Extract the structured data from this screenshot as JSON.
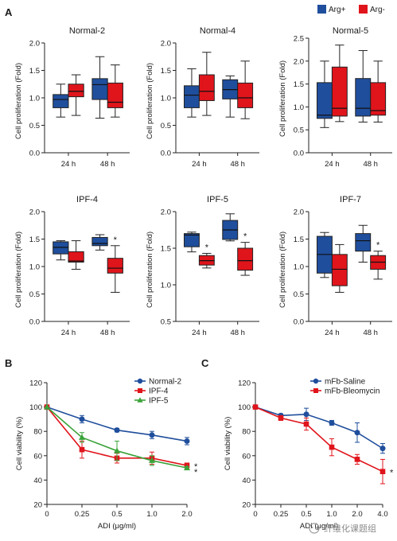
{
  "panels": {
    "A": "A",
    "B": "B",
    "C": "C"
  },
  "colors": {
    "arg_plus": "#1f4e9c",
    "arg_minus": "#e0141b",
    "normal2": "#1f4e9c",
    "ipf4": "#e0141b",
    "ipf5": "#3aa33a",
    "saline": "#1f4e9c",
    "bleomycin": "#e0141b"
  },
  "legend_A": [
    {
      "name": "Arg+",
      "color": "#1f4e9c"
    },
    {
      "name": "Arg-",
      "color": "#e0141b"
    }
  ],
  "watermark": "纤维化课题组",
  "chart_data": [
    {
      "type": "box",
      "title": "Normal-2",
      "ylabel": "Cell proliferation (Fold)",
      "categories": [
        "24 h",
        "48 h"
      ],
      "ylim": [
        0,
        2.0
      ],
      "yticks": [
        "0.0",
        "0.5",
        "1.0",
        "1.5",
        "2.0"
      ],
      "series": [
        {
          "name": "Arg+",
          "boxes": [
            {
              "min": 0.65,
              "q1": 0.82,
              "median": 0.97,
              "q3": 1.06,
              "max": 1.25
            },
            {
              "min": 0.63,
              "q1": 0.97,
              "median": 1.24,
              "q3": 1.35,
              "max": 1.75
            }
          ]
        },
        {
          "name": "Arg-",
          "boxes": [
            {
              "min": 0.68,
              "q1": 1.02,
              "median": 1.12,
              "q3": 1.25,
              "max": 1.42
            },
            {
              "min": 0.65,
              "q1": 0.82,
              "median": 0.92,
              "q3": 1.27,
              "max": 1.6
            }
          ]
        }
      ],
      "stars": [
        "",
        ""
      ]
    },
    {
      "type": "box",
      "title": "Normal-4",
      "ylabel": "Cell proliferation (Fold)",
      "categories": [
        "24 h",
        "48 h"
      ],
      "ylim": [
        0,
        2.0
      ],
      "yticks": [
        "0.0",
        "0.5",
        "1.0",
        "1.5",
        "2.0"
      ],
      "series": [
        {
          "name": "Arg+",
          "boxes": [
            {
              "min": 0.65,
              "q1": 0.82,
              "median": 1.05,
              "q3": 1.22,
              "max": 1.53
            },
            {
              "min": 0.65,
              "q1": 0.98,
              "median": 1.15,
              "q3": 1.33,
              "max": 1.4
            }
          ]
        },
        {
          "name": "Arg-",
          "boxes": [
            {
              "min": 0.68,
              "q1": 0.95,
              "median": 1.12,
              "q3": 1.42,
              "max": 1.83
            },
            {
              "min": 0.62,
              "q1": 0.82,
              "median": 1.0,
              "q3": 1.27,
              "max": 1.67
            }
          ]
        }
      ],
      "stars": [
        "",
        ""
      ]
    },
    {
      "type": "box",
      "title": "Normal-5",
      "ylabel": "Cell proliferation (Fold)",
      "categories": [
        "24 h",
        "48 h"
      ],
      "ylim": [
        0,
        2.5
      ],
      "yticks": [
        "0.0",
        "0.5",
        "1.0",
        "1.5",
        "2.0",
        "2.5"
      ],
      "series": [
        {
          "name": "Arg+",
          "boxes": [
            {
              "min": 0.55,
              "q1": 0.75,
              "median": 0.82,
              "q3": 1.53,
              "max": 2.0
            },
            {
              "min": 0.67,
              "q1": 0.8,
              "median": 0.97,
              "q3": 1.62,
              "max": 2.23
            }
          ]
        },
        {
          "name": "Arg-",
          "boxes": [
            {
              "min": 0.68,
              "q1": 0.8,
              "median": 0.97,
              "q3": 1.87,
              "max": 2.35
            },
            {
              "min": 0.67,
              "q1": 0.82,
              "median": 0.92,
              "q3": 1.53,
              "max": 2.0
            }
          ]
        }
      ],
      "stars": [
        "",
        ""
      ]
    },
    {
      "type": "box",
      "title": "IPF-4",
      "ylabel": "Cell proliferation (Fold)",
      "categories": [
        "24 h",
        "48 h"
      ],
      "ylim": [
        0,
        2.0
      ],
      "yticks": [
        "0.0",
        "0.5",
        "1.0",
        "1.5",
        "2.0"
      ],
      "series": [
        {
          "name": "Arg+",
          "boxes": [
            {
              "min": 1.12,
              "q1": 1.23,
              "median": 1.35,
              "q3": 1.45,
              "max": 1.47
            },
            {
              "min": 1.3,
              "q1": 1.38,
              "median": 1.42,
              "q3": 1.53,
              "max": 1.58
            }
          ]
        },
        {
          "name": "Arg-",
          "boxes": [
            {
              "min": 0.95,
              "q1": 1.08,
              "median": 1.1,
              "q3": 1.27,
              "max": 1.47
            },
            {
              "min": 0.53,
              "q1": 0.88,
              "median": 0.97,
              "q3": 1.15,
              "max": 1.38
            }
          ]
        }
      ],
      "stars": [
        "",
        "*"
      ]
    },
    {
      "type": "box",
      "title": "IPF-5",
      "ylabel": "Cell proliferation (Fold)",
      "categories": [
        "24 h",
        "48 h"
      ],
      "ylim": [
        0.5,
        2.0
      ],
      "yticks": [
        "0.5",
        "1.0",
        "1.5",
        "2.0"
      ],
      "series": [
        {
          "name": "Arg+",
          "boxes": [
            {
              "min": 1.45,
              "q1": 1.52,
              "median": 1.68,
              "q3": 1.7,
              "max": 1.72
            },
            {
              "min": 1.6,
              "q1": 1.62,
              "median": 1.75,
              "q3": 1.88,
              "max": 1.97
            }
          ]
        },
        {
          "name": "Arg-",
          "boxes": [
            {
              "min": 1.23,
              "q1": 1.27,
              "median": 1.33,
              "q3": 1.4,
              "max": 1.43
            },
            {
              "min": 1.13,
              "q1": 1.2,
              "median": 1.33,
              "q3": 1.5,
              "max": 1.58
            }
          ]
        }
      ],
      "stars": [
        "*",
        "*"
      ]
    },
    {
      "type": "box",
      "title": "IPF-7",
      "ylabel": "Cell proliferation (Fold)",
      "categories": [
        "24 h",
        "48 h"
      ],
      "ylim": [
        0,
        2.0
      ],
      "yticks": [
        "0.0",
        "0.5",
        "1.0",
        "1.5",
        "2.0"
      ],
      "series": [
        {
          "name": "Arg+",
          "boxes": [
            {
              "min": 0.8,
              "q1": 0.88,
              "median": 1.22,
              "q3": 1.55,
              "max": 1.62
            },
            {
              "min": 1.08,
              "q1": 1.28,
              "median": 1.47,
              "q3": 1.6,
              "max": 1.75
            }
          ]
        },
        {
          "name": "Arg-",
          "boxes": [
            {
              "min": 0.53,
              "q1": 0.65,
              "median": 0.95,
              "q3": 1.22,
              "max": 1.4
            },
            {
              "min": 0.77,
              "q1": 0.95,
              "median": 1.08,
              "q3": 1.2,
              "max": 1.28
            }
          ]
        }
      ],
      "stars": [
        "",
        "*"
      ]
    },
    {
      "type": "line",
      "xlabel": "ADI (μg/ml)",
      "ylabel": "Cell viability (%)",
      "x": [
        "0",
        "0.25",
        "0.5",
        "1.0",
        "2.0"
      ],
      "ylim": [
        20,
        120
      ],
      "yticks": [
        "20",
        "40",
        "60",
        "80",
        "100",
        "120"
      ],
      "legend": "top-right",
      "series": [
        {
          "name": "Normal-2",
          "values": [
            100,
            90,
            81,
            77,
            72
          ],
          "err": [
            0,
            3,
            1.5,
            3,
            3
          ],
          "marker": "circle"
        },
        {
          "name": "IPF-4",
          "values": [
            100,
            65,
            58,
            58,
            52
          ],
          "err": [
            0,
            7,
            4,
            5,
            2
          ],
          "marker": "square"
        },
        {
          "name": "IPF-5",
          "values": [
            100,
            75,
            64,
            56,
            50
          ],
          "err": [
            0,
            4,
            8,
            4,
            1
          ],
          "marker": "triangle"
        }
      ],
      "stars": [
        "*",
        "*"
      ]
    },
    {
      "type": "line",
      "xlabel": "ADI (μg/ml)",
      "ylabel": "Cell viability (%)",
      "x": [
        "0",
        "0.25",
        "0.5",
        "1.0",
        "2.0",
        "4.0"
      ],
      "ylim": [
        20,
        120
      ],
      "yticks": [
        "20",
        "40",
        "60",
        "80",
        "100",
        "120"
      ],
      "legend": "top-right",
      "series": [
        {
          "name": "mFb-Saline",
          "values": [
            100,
            93,
            94,
            87,
            79,
            66
          ],
          "err": [
            0,
            1.5,
            5,
            2,
            8,
            4
          ],
          "marker": "circle"
        },
        {
          "name": "mFb-Bleomycin",
          "values": [
            100,
            91,
            86,
            67,
            57,
            47
          ],
          "err": [
            0,
            2,
            5,
            7,
            4,
            10
          ],
          "marker": "square"
        }
      ],
      "stars": [
        "*"
      ]
    }
  ]
}
